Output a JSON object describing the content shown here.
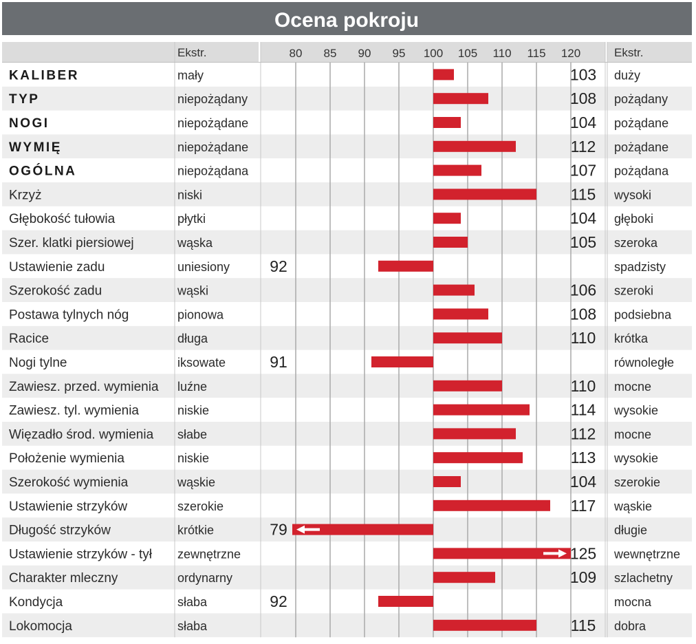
{
  "title": "Ocena pokroju",
  "header": {
    "left_extreme_label": "Ekstr.",
    "right_extreme_label": "Ekstr."
  },
  "colors": {
    "title_bg": "#6a6e72",
    "bar": "#d2222d",
    "row_shade": "#ededed",
    "gridline": "#a9a9a9",
    "header_bg": "#dcdcdc"
  },
  "chart_data": {
    "type": "bar",
    "orientation": "horizontal",
    "title": "Ocena pokroju",
    "baseline": 100,
    "xlim": [
      75,
      120
    ],
    "ticks": [
      80,
      85,
      90,
      95,
      100,
      105,
      110,
      115,
      120
    ],
    "grid": true,
    "rows": [
      {
        "label": "KALIBER",
        "bold": true,
        "low": "mały",
        "high": "duży",
        "value": 103
      },
      {
        "label": "TYP",
        "bold": true,
        "low": "niepożądany",
        "high": "pożądany",
        "value": 108
      },
      {
        "label": "NOGI",
        "bold": true,
        "low": "niepożądane",
        "high": "pożądane",
        "value": 104
      },
      {
        "label": "WYMIĘ",
        "bold": true,
        "low": "niepożądane",
        "high": "pożądane",
        "value": 112
      },
      {
        "label": "OGÓLNA",
        "bold": true,
        "low": "niepożądana",
        "high": "pożądana",
        "value": 107
      },
      {
        "label": "Krzyż",
        "bold": false,
        "low": "niski",
        "high": "wysoki",
        "value": 115
      },
      {
        "label": "Głębokość tułowia",
        "bold": false,
        "low": "płytki",
        "high": "głęboki",
        "value": 104
      },
      {
        "label": "Szer. klatki piersiowej",
        "bold": false,
        "low": "wąska",
        "high": "szeroka",
        "value": 105
      },
      {
        "label": "Ustawienie zadu",
        "bold": false,
        "low": "uniesiony",
        "high": "spadzisty",
        "value": 92
      },
      {
        "label": "Szerokość zadu",
        "bold": false,
        "low": "wąski",
        "high": "szeroki",
        "value": 106
      },
      {
        "label": "Postawa tylnych nóg",
        "bold": false,
        "low": "pionowa",
        "high": "podsiebna",
        "value": 108
      },
      {
        "label": "Racice",
        "bold": false,
        "low": "długa",
        "high": "krótka",
        "value": 110
      },
      {
        "label": "Nogi tylne",
        "bold": false,
        "low": "iksowate",
        "high": "równoległe",
        "value": 91
      },
      {
        "label": "Zawiesz. przed. wymienia",
        "bold": false,
        "low": "luźne",
        "high": "mocne",
        "value": 110
      },
      {
        "label": "Zawiesz. tyl. wymienia",
        "bold": false,
        "low": "niskie",
        "high": "wysokie",
        "value": 114
      },
      {
        "label": "Więzadło środ. wymienia",
        "bold": false,
        "low": "słabe",
        "high": "mocne",
        "value": 112
      },
      {
        "label": "Położenie wymienia",
        "bold": false,
        "low": "niskie",
        "high": "wysokie",
        "value": 113
      },
      {
        "label": "Szerokość wymienia",
        "bold": false,
        "low": "wąskie",
        "high": "szerokie",
        "value": 104
      },
      {
        "label": "Ustawienie strzyków",
        "bold": false,
        "low": "szerokie",
        "high": "wąskie",
        "value": 117
      },
      {
        "label": "Długość strzyków",
        "bold": false,
        "low": "krótkie",
        "high": "długie",
        "value": 79
      },
      {
        "label": "Ustawienie strzyków - tył",
        "bold": false,
        "low": "zewnętrzne",
        "high": "wewnętrzne",
        "value": 125
      },
      {
        "label": "Charakter mleczny",
        "bold": false,
        "low": "ordynarny",
        "high": "szlachetny",
        "value": 109
      },
      {
        "label": "Kondycja",
        "bold": false,
        "low": "słaba",
        "high": "mocna",
        "value": 92
      },
      {
        "label": "Lokomocja",
        "bold": false,
        "low": "słaba",
        "high": "dobra",
        "value": 115
      }
    ]
  }
}
